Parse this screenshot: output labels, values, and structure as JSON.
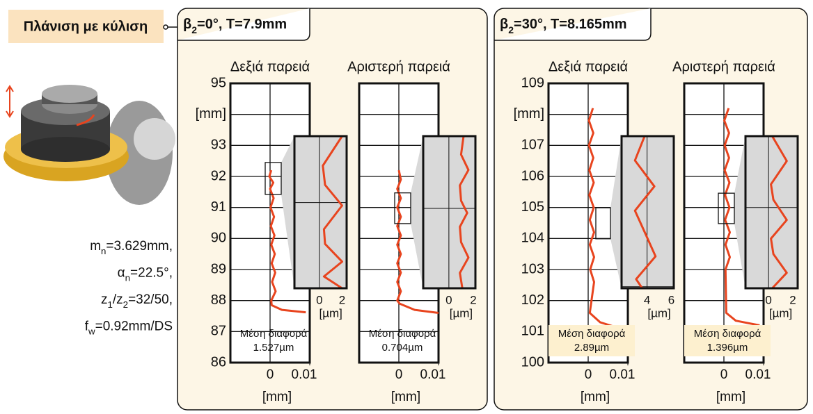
{
  "label": "Πλάνιση με κύλιση",
  "parameters": [
    {
      "symbol": "m",
      "sub": "n",
      "rest": "=3.629mm,"
    },
    {
      "symbol": "α",
      "sub": "n",
      "rest": "=22.5°,"
    },
    {
      "symbol": "z",
      "sub": "1",
      "rest": "/z",
      "sub2": "2",
      "rest2": "=32/50,"
    },
    {
      "symbol": "f",
      "sub": "w",
      "rest": "=0.92mm/DS"
    }
  ],
  "panels": [
    {
      "symbol": "β",
      "sub": "2",
      "rest": "=0°, T=7.9mm"
    },
    {
      "symbol": "β",
      "sub": "2",
      "rest": "=30°, T=8.165mm"
    }
  ],
  "chart_data": [
    {
      "type": "line",
      "title": "Δεξιά παρειά",
      "xlabel": "[mm]",
      "xlim": [
        -0.01,
        0.01
      ],
      "xticks": [
        0,
        0.01
      ],
      "ylim": [
        86,
        95
      ],
      "yticks": [
        86,
        87,
        88,
        89,
        90,
        91,
        92,
        93,
        {
          "value": 94,
          "label": "[mm]"
        },
        95
      ],
      "show_ytick_labels": true,
      "color": "#e8441e",
      "x": [
        0.0003,
        -0.0002,
        0.0008,
        0,
        0.0009,
        0.0001,
        0.001,
        0.0002,
        0.0011,
        0.0003,
        0.0012,
        0.0004,
        0.0013,
        0.0005,
        0.0014,
        0.0003,
        0.0004,
        0.003,
        0.009
      ],
      "y": [
        92.2,
        92.0,
        91.8,
        91.6,
        91.3,
        91.0,
        90.7,
        90.4,
        90.1,
        89.8,
        89.5,
        89.2,
        88.9,
        88.6,
        88.3,
        88.0,
        87.85,
        87.7,
        87.62
      ],
      "mean_label": "Μέση διαφορά",
      "mean_value": "1.527µm",
      "inset": {
        "xlabel": "[µm]",
        "xlim": [
          -2.2,
          2.4
        ],
        "xticks": [
          0,
          2
        ],
        "ylim": [
          91.42,
          92.45
        ],
        "x": [
          2,
          0.3,
          0.5,
          2,
          0.4,
          0.5,
          2,
          0.4,
          2
        ],
        "y": [
          92.45,
          92.25,
          92.12,
          91.98,
          91.82,
          91.72,
          91.6,
          91.5,
          91.42
        ]
      }
    },
    {
      "type": "line",
      "title": "Αριστερή παρειά",
      "xlabel": "[mm]",
      "xlim": [
        -0.01,
        0.01
      ],
      "xticks": [
        0,
        0.01
      ],
      "ylim": [
        86,
        95
      ],
      "yticks": [
        86,
        87,
        88,
        89,
        90,
        91,
        92,
        93,
        94,
        95
      ],
      "show_ytick_labels": false,
      "color": "#e8441e",
      "x": [
        0,
        0.0005,
        -0.0004,
        0.0005,
        -0.0004,
        0.0005,
        -0.0004,
        0.0005,
        -0.0004,
        0.0005,
        -0.0004,
        0.0005,
        -0.0004,
        0.0005,
        -0.0004,
        0.0002,
        0.004,
        0.01
      ],
      "y": [
        92.2,
        91.9,
        91.6,
        91.3,
        91.0,
        90.7,
        90.4,
        90.1,
        89.8,
        89.5,
        89.2,
        88.9,
        88.6,
        88.3,
        88.0,
        87.9,
        87.7,
        87.6
      ],
      "mean_label": "Μέση διαφορά",
      "mean_value": "0.704µm",
      "inset": {
        "xlabel": "[µm]",
        "xlim": [
          -2.1,
          2.17
        ],
        "xticks": [
          0,
          2
        ],
        "ylim": [
          90.48,
          91.47
        ],
        "x": [
          1.2,
          1.0,
          1.6,
          0.9,
          1.0,
          1.5,
          0.9,
          1.0,
          1.6,
          0.9,
          1.1
        ],
        "y": [
          91.47,
          91.35,
          91.25,
          91.15,
          91.05,
          90.97,
          90.88,
          90.78,
          90.68,
          90.58,
          90.48
        ]
      }
    },
    {
      "type": "line",
      "title": "Δεξιά παρειά",
      "xlabel": "[mm]",
      "xlim": [
        -0.01,
        0.01
      ],
      "xticks": [
        0,
        0.01
      ],
      "ylim": [
        100,
        109
      ],
      "yticks": [
        100,
        101,
        102,
        103,
        104,
        105,
        106,
        107,
        {
          "value": 108,
          "label": "[mm]"
        },
        109
      ],
      "show_ytick_labels": true,
      "color": "#e8441e",
      "x": [
        0.0012,
        0.0002,
        0.0013,
        0.0002,
        0.0013,
        0.0003,
        0.0014,
        0.0003,
        0.0014,
        0.0004,
        0.0015,
        0.0004,
        0.0015,
        0.0005,
        0.0015,
        0.0004,
        0.003,
        0.008
      ],
      "y": [
        108.2,
        107.8,
        107.4,
        107.0,
        106.6,
        106.2,
        105.8,
        105.4,
        105.0,
        104.6,
        104.2,
        103.8,
        103.4,
        103.0,
        102.6,
        101.6,
        101.3,
        101.1
      ],
      "mean_label": "Μέση διαφορά",
      "mean_value": "2.89µm",
      "inset": {
        "xlabel": "[µm]",
        "xlim": [
          1.9,
          6.2
        ],
        "xticks": [
          4,
          6
        ],
        "ylim": [
          103.99,
          104.99
        ],
        "x": [
          3.8,
          3.0,
          4.6,
          3.0,
          3.8,
          4.7,
          3.1,
          3.6
        ],
        "y": [
          104.99,
          104.83,
          104.66,
          104.5,
          104.36,
          104.2,
          104.05,
          103.99
        ]
      }
    },
    {
      "type": "line",
      "title": "Αριστερή παρειά",
      "xlabel": "[mm]",
      "xlim": [
        -0.01,
        0.01
      ],
      "xticks": [
        0,
        0.01
      ],
      "ylim": [
        100,
        109
      ],
      "yticks": [
        100,
        101,
        102,
        103,
        104,
        105,
        106,
        107,
        108,
        109
      ],
      "show_ytick_labels": false,
      "color": "#e8441e",
      "x": [
        0.0012,
        0.0001,
        0.0013,
        0.0002,
        0.0013,
        0.0002,
        0.0014,
        0.0003,
        0.0014,
        0.0003,
        0.0015,
        0.0004,
        0.0015,
        0.0004,
        0.0006,
        0.003,
        0.009
      ],
      "y": [
        108.2,
        107.8,
        107.4,
        107.0,
        106.6,
        106.2,
        105.8,
        105.4,
        105.0,
        104.6,
        104.2,
        103.8,
        103.4,
        103.0,
        101.6,
        101.35,
        101.2
      ],
      "mean_label": "Μέση διαφορά",
      "mean_value": "1.396µm",
      "inset": {
        "xlabel": "[µm]",
        "xlim": [
          -1.9,
          2.4
        ],
        "xticks": [
          0,
          2
        ],
        "ylim": [
          104.48,
          105.46
        ],
        "x": [
          0.3,
          1.5,
          0.2,
          0.4,
          1.5,
          0.2,
          0.4,
          1.5,
          0.3
        ],
        "y": [
          105.46,
          105.3,
          105.15,
          105.05,
          104.92,
          104.8,
          104.7,
          104.58,
          104.48
        ]
      }
    }
  ]
}
